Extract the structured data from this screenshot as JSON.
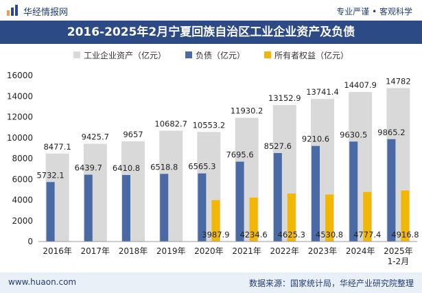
{
  "header": {
    "site_name": "华经情报网",
    "slogan": "专业严谨 • 客观科学"
  },
  "footer": {
    "url": "www.huaon.com",
    "source": "数据来源：国家统计局，华经产业研究院整理"
  },
  "colors": {
    "assets": "#d9d9d9",
    "liabilities": "#4a6aa5",
    "equity": "#f2b705",
    "title_bg": "#2c4a86"
  },
  "chart_data": {
    "type": "bar",
    "title": "2016-2025年2月宁夏回族自治区工业企业资产及负债",
    "categories": [
      "2016年",
      "2017年",
      "2018年",
      "2019年",
      "2020年",
      "2021年",
      "2022年",
      "2023年",
      "2024年",
      "2025年\n1-2月"
    ],
    "series": [
      {
        "name": "工业企业资产（亿元）",
        "values": [
          8477.1,
          9425.7,
          9657,
          10682.7,
          10553.2,
          11930.2,
          13152.9,
          13741.4,
          14407.9,
          14782
        ],
        "labels": [
          "8477.1",
          "9425.7",
          "9657",
          "10682.7",
          "10553.2",
          "11930.2",
          "13152.9",
          "13741.4",
          "14407.9",
          "14782"
        ]
      },
      {
        "name": "负债（亿元）",
        "values": [
          5732.1,
          6439.7,
          6410.8,
          6518.8,
          6565.3,
          7695.6,
          8527.6,
          9210.6,
          9630.5,
          9865.2
        ],
        "labels": [
          "5732.1",
          "6439.7",
          "6410.8",
          "6518.8",
          "6565.3",
          "7695.6",
          "8527.6",
          "9210.6",
          "9630.5",
          "9865.2"
        ]
      },
      {
        "name": "所有者权益（亿元）",
        "values": [
          null,
          null,
          null,
          null,
          3987.9,
          4234.6,
          4625.3,
          4530.8,
          4777.4,
          4916.8
        ],
        "labels": [
          "",
          "",
          "",
          "",
          "3987.9",
          "4234.6",
          "4625.3",
          "4530.8",
          "4777.4",
          "4916.8"
        ]
      }
    ],
    "yticks": [
      "0",
      "2000",
      "4000",
      "6000",
      "8000",
      "10000",
      "12000",
      "14000",
      "16000"
    ],
    "ylim": [
      0,
      16000
    ],
    "xlabel": "",
    "ylabel": "",
    "grid": false,
    "legend": "top-center"
  }
}
